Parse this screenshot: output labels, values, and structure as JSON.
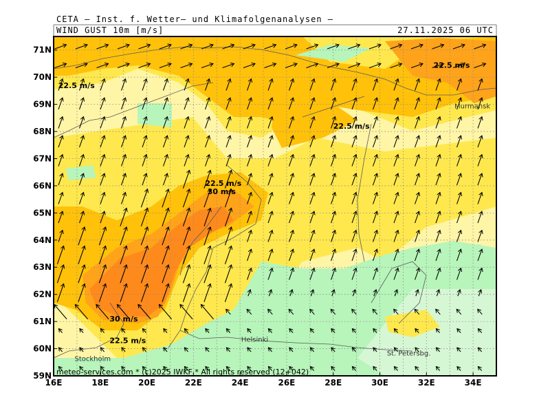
{
  "header": {
    "institute": "CETA – Inst. f. Wetter– und Klimafolgenanalysen –",
    "parameter": "WIND GUST 10m [m/s]",
    "timestamp": "27.11.2025 06 UTC"
  },
  "map": {
    "lon_range": [
      16,
      35
    ],
    "lat_range": [
      59,
      71.5
    ],
    "lon_ticks": [
      "16E",
      "18E",
      "20E",
      "22E",
      "24E",
      "26E",
      "28E",
      "30E",
      "32E",
      "34E"
    ],
    "lat_ticks": [
      "59N",
      "60N",
      "61N",
      "62N",
      "63N",
      "64N",
      "65N",
      "66N",
      "67N",
      "68N",
      "69N",
      "70N",
      "71N"
    ],
    "colors": {
      "bg_light": "#fff5a6",
      "band_yellow": "#ffe84d",
      "band_orange1": "#ffc10a",
      "band_orange2": "#ffa31a",
      "band_orange3": "#ff8a1c",
      "band_green": "#b7f5ba",
      "band_green2": "#d6f7d4",
      "coast": "#5a5a5a",
      "grid": "#8a8a8a"
    },
    "labels": [
      {
        "text": "22.5 m/s",
        "lon": 16.2,
        "lat": 69.6
      },
      {
        "text": "22.5 m/s",
        "lon": 32.3,
        "lat": 70.35
      },
      {
        "text": "22.5 m/s",
        "lon": 28.0,
        "lat": 68.1
      },
      {
        "text": "22.5 m/s",
        "lon": 22.5,
        "lat": 66.0
      },
      {
        "text": "30 m/s",
        "lon": 22.6,
        "lat": 65.7
      },
      {
        "text": "30 m/s",
        "lon": 18.4,
        "lat": 61.0
      },
      {
        "text": "22.5 m/s",
        "lon": 18.4,
        "lat": 60.2
      }
    ],
    "cities": [
      {
        "name": "Murmansk",
        "lon": 33.2,
        "lat": 68.85
      },
      {
        "name": "Helsinki",
        "lon": 24.05,
        "lat": 60.25
      },
      {
        "name": "St. Petersbg.",
        "lon": 30.3,
        "lat": 59.75
      },
      {
        "name": "Stockholm",
        "lon": 16.9,
        "lat": 59.55
      }
    ],
    "footer": "meteo-services.com  * (c)2025 IWKF * All rights reserved (12+042)"
  }
}
